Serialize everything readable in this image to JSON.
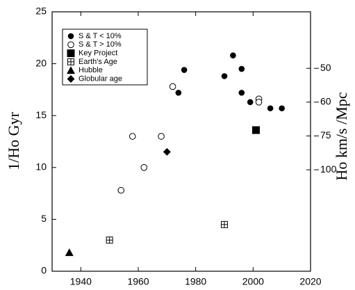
{
  "chart_data": {
    "type": "scatter",
    "ylabel": "1/Ho Gyr",
    "y2label": "Ho  km/s /Mpc",
    "xlim": [
      1930,
      2020
    ],
    "xticks": [
      1940,
      1960,
      1980,
      2000,
      2020
    ],
    "ylim": [
      0,
      25
    ],
    "yticks": [
      0,
      5,
      10,
      15,
      20,
      25
    ],
    "y2scale": {
      "type": "reciprocal",
      "factor": 977.8
    },
    "y2ticks": [
      50,
      60,
      75,
      100
    ],
    "legend": "upper left",
    "series": [
      {
        "name": "S & T < 10%",
        "marker": "filled-circle",
        "color": "#000000",
        "x": [
          1974,
          1976,
          1990,
          1993,
          1996,
          1996,
          1999,
          2006,
          2010
        ],
        "values": [
          17.2,
          19.4,
          18.8,
          20.8,
          19.5,
          17.2,
          16.3,
          15.7,
          15.7
        ]
      },
      {
        "name": "S & T > 10%",
        "marker": "open-circle",
        "color": "#000000",
        "x": [
          1954,
          1958,
          1962,
          1968,
          1972,
          2002,
          2002
        ],
        "values": [
          7.8,
          13.0,
          10.0,
          13.0,
          17.8,
          16.6,
          16.3
        ]
      },
      {
        "name": "Key Project",
        "marker": "square",
        "color": "#000000",
        "x": [
          2001
        ],
        "values": [
          13.6
        ]
      },
      {
        "name": "Earth's Age",
        "marker": "boxed-plus",
        "color": "#000000",
        "x": [
          1950,
          1990
        ],
        "values": [
          3.0,
          4.5
        ]
      },
      {
        "name": "Hubble",
        "marker": "triangle",
        "color": "#000000",
        "x": [
          1936
        ],
        "values": [
          1.8
        ]
      },
      {
        "name": "Globular age",
        "marker": "diamond",
        "color": "#000000",
        "x": [
          1970
        ],
        "values": [
          11.5
        ]
      }
    ]
  }
}
